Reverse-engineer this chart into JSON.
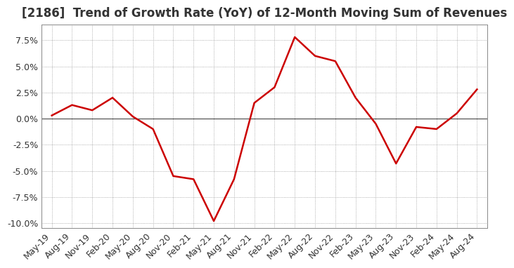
{
  "title": "[2186]  Trend of Growth Rate (YoY) of 12-Month Moving Sum of Revenues",
  "x_labels": [
    "May-19",
    "Aug-19",
    "Nov-19",
    "Feb-20",
    "May-20",
    "Aug-20",
    "Nov-20",
    "Feb-21",
    "May-21",
    "Aug-21",
    "Nov-21",
    "Feb-22",
    "May-22",
    "Aug-22",
    "Nov-22",
    "Feb-23",
    "May-23",
    "Aug-23",
    "Nov-23",
    "Feb-24",
    "May-24",
    "Aug-24"
  ],
  "y_values": [
    0.003,
    0.013,
    0.008,
    0.02,
    0.002,
    -0.01,
    -0.055,
    -0.058,
    -0.098,
    -0.058,
    0.015,
    0.03,
    0.078,
    0.06,
    0.055,
    0.02,
    -0.005,
    -0.043,
    -0.008,
    -0.01,
    0.005,
    0.028
  ],
  "ylim": [
    -0.105,
    0.09
  ],
  "yticks": [
    -0.1,
    -0.075,
    -0.05,
    -0.025,
    0.0,
    0.025,
    0.05,
    0.075
  ],
  "line_color": "#cc0000",
  "line_width": 1.8,
  "background_color": "#ffffff",
  "plot_bg_color": "#ffffff",
  "grid_color": "#999999",
  "title_fontsize": 12,
  "tick_fontsize": 9,
  "title_color": "#333333",
  "spine_color": "#888888",
  "zero_line_color": "#555555"
}
